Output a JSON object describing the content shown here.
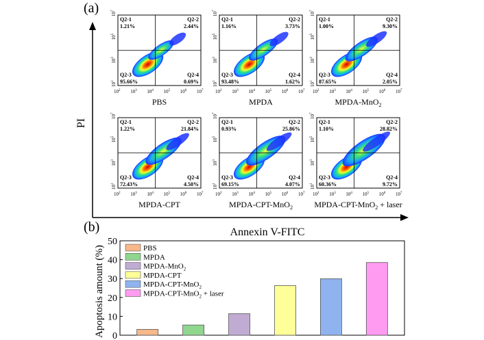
{
  "panel_a": {
    "label": "(a)",
    "y_axis_label": "PI",
    "x_axis_label": "Annexin V-FITC",
    "x_ticks": [
      "10^2",
      "10^3",
      "10^4",
      "10^5",
      "10^6",
      "10^7"
    ],
    "y_ticks": [
      "10^1",
      "10^3",
      "10^5",
      "10^7"
    ],
    "plots": [
      {
        "name": "PBS",
        "sub": "",
        "suffix": "",
        "q1": "Q2-1",
        "v1": "1.21%",
        "q2": "Q2-2",
        "v2": "2.44%",
        "q3": "Q2-3",
        "v3": "95.66%",
        "q4": "Q2-4",
        "v4": "0.69%"
      },
      {
        "name": "MPDA",
        "sub": "",
        "suffix": "",
        "q1": "Q2-1",
        "v1": "1.16%",
        "q2": "Q2-2",
        "v2": "3.73%",
        "q3": "Q2-3",
        "v3": "93.48%",
        "q4": "Q2-4",
        "v4": "1.62%"
      },
      {
        "name": "MPDA-MnO",
        "sub": "2",
        "suffix": "",
        "q1": "Q2-1",
        "v1": "1.00%",
        "q2": "Q2-2",
        "v2": "9.30%",
        "q3": "Q2-3",
        "v3": "87.65%",
        "q4": "Q2-4",
        "v4": "2.05%"
      },
      {
        "name": "MPDA-CPT",
        "sub": "",
        "suffix": "",
        "q1": "Q2-1",
        "v1": "1.22%",
        "q2": "Q2-2",
        "v2": "21.84%",
        "q3": "Q2-3",
        "v3": "72.43%",
        "q4": "Q2-4",
        "v4": "4.50%"
      },
      {
        "name": "MPDA-CPT-MnO",
        "sub": "2",
        "suffix": "",
        "q1": "Q2-1",
        "v1": "0.93%",
        "q2": "Q2-2",
        "v2": "25.86%",
        "q3": "Q2-3",
        "v3": "69.15%",
        "q4": "Q2-4",
        "v4": "4.07%"
      },
      {
        "name": "MPDA-CPT-MnO",
        "sub": "2",
        "suffix": " + laser",
        "q1": "Q2-1",
        "v1": "1.10%",
        "q2": "Q2-2",
        "v2": "28.82%",
        "q3": "Q2-3",
        "v3": "60.36%",
        "q4": "Q2-4",
        "v4": "9.72%"
      }
    ]
  },
  "panel_b": {
    "label": "(b)",
    "y_ticks": [
      "0",
      "10",
      "20",
      "30",
      "40",
      "50"
    ]
  },
  "chart_data": {
    "type": "bar",
    "title": "",
    "xlabel": "",
    "ylabel": "Apoptosis amount (%)",
    "ylim": [
      0,
      50
    ],
    "legend_position": "top-left",
    "categories": [
      "PBS",
      "MPDA",
      "MPDA-MnO2",
      "MPDA-CPT",
      "MPDA-CPT-MnO2",
      "MPDA-CPT-MnO2 + laser"
    ],
    "values": [
      3.1,
      5.4,
      11.4,
      26.3,
      29.9,
      38.5
    ],
    "colors": [
      "#f7b88a",
      "#8fd68e",
      "#c0acd3",
      "#ffff99",
      "#8fb3ee",
      "#ff9cf2"
    ]
  }
}
